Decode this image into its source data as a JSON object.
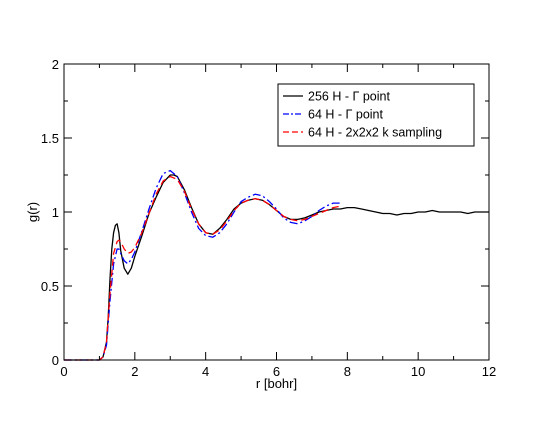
{
  "chart_data": {
    "type": "line",
    "title": "",
    "xlabel": "r [bohr]",
    "ylabel": "g(r)",
    "xlim": [
      0,
      12
    ],
    "ylim": [
      0,
      2
    ],
    "xticks": [
      0,
      2,
      4,
      6,
      8,
      10,
      12
    ],
    "yticks": [
      0,
      0.5,
      1,
      1.5,
      2
    ],
    "xtick_labels": [
      "0",
      "2",
      "4",
      "6",
      "8",
      "10",
      "12"
    ],
    "ytick_labels": [
      "0",
      "0.5",
      "1",
      "1.5",
      "2"
    ],
    "grid": false,
    "legend_position": "top-right",
    "series": [
      {
        "name": "256 H - Γ point",
        "color": "#000000",
        "dash": "solid",
        "x": [
          0,
          1.0,
          1.1,
          1.2,
          1.25,
          1.3,
          1.35,
          1.4,
          1.45,
          1.5,
          1.55,
          1.6,
          1.7,
          1.8,
          1.9,
          2.0,
          2.2,
          2.4,
          2.6,
          2.8,
          3.0,
          3.1,
          3.2,
          3.4,
          3.6,
          3.8,
          4.0,
          4.2,
          4.4,
          4.6,
          4.8,
          5.0,
          5.2,
          5.4,
          5.6,
          5.8,
          6.0,
          6.2,
          6.4,
          6.6,
          6.8,
          7.0,
          7.2,
          7.4,
          7.6,
          7.8,
          8.0,
          8.2,
          8.4,
          8.6,
          8.8,
          9.0,
          9.2,
          9.4,
          9.6,
          9.8,
          10.0,
          10.2,
          10.4,
          10.6,
          10.8,
          11.0,
          11.2,
          11.4,
          11.6,
          11.8,
          12.0
        ],
        "y": [
          0,
          0,
          0.02,
          0.12,
          0.3,
          0.55,
          0.75,
          0.86,
          0.91,
          0.92,
          0.86,
          0.74,
          0.62,
          0.58,
          0.62,
          0.7,
          0.84,
          0.99,
          1.1,
          1.2,
          1.25,
          1.25,
          1.24,
          1.15,
          1.03,
          0.92,
          0.86,
          0.85,
          0.89,
          0.95,
          1.02,
          1.06,
          1.08,
          1.09,
          1.08,
          1.05,
          1.01,
          0.97,
          0.95,
          0.95,
          0.96,
          0.98,
          1.0,
          1.01,
          1.02,
          1.02,
          1.03,
          1.03,
          1.02,
          1.01,
          1.0,
          0.99,
          0.99,
          0.98,
          0.99,
          0.99,
          1.0,
          1.0,
          1.01,
          1.0,
          1.0,
          1.0,
          1.0,
          0.99,
          1.0,
          1.0,
          1.0
        ]
      },
      {
        "name": "64 H   - Γ point",
        "color": "#0000ff",
        "dash": "dashdot",
        "x": [
          0,
          1.0,
          1.1,
          1.2,
          1.3,
          1.4,
          1.5,
          1.55,
          1.6,
          1.7,
          1.8,
          1.9,
          2.0,
          2.2,
          2.4,
          2.6,
          2.8,
          3.0,
          3.2,
          3.4,
          3.6,
          3.8,
          4.0,
          4.2,
          4.4,
          4.6,
          4.8,
          5.0,
          5.2,
          5.4,
          5.6,
          5.8,
          6.0,
          6.2,
          6.4,
          6.6,
          6.8,
          7.0,
          7.2,
          7.4,
          7.6,
          7.8
        ],
        "y": [
          0,
          0,
          0.02,
          0.1,
          0.4,
          0.65,
          0.75,
          0.75,
          0.72,
          0.67,
          0.65,
          0.68,
          0.73,
          0.87,
          1.02,
          1.16,
          1.26,
          1.28,
          1.24,
          1.13,
          1.0,
          0.89,
          0.84,
          0.83,
          0.86,
          0.92,
          1.0,
          1.07,
          1.1,
          1.12,
          1.11,
          1.07,
          1.02,
          0.96,
          0.93,
          0.92,
          0.94,
          0.97,
          1.01,
          1.04,
          1.06,
          1.06
        ]
      },
      {
        "name": "64 H   - 2x2x2 k sampling",
        "color": "#ff0000",
        "dash": "dashed",
        "x": [
          0,
          1.0,
          1.1,
          1.2,
          1.3,
          1.4,
          1.5,
          1.55,
          1.6,
          1.7,
          1.8,
          1.9,
          2.0,
          2.2,
          2.4,
          2.6,
          2.8,
          3.0,
          3.2,
          3.4,
          3.6,
          3.8,
          4.0,
          4.2,
          4.4,
          4.6,
          4.8,
          5.0,
          5.2,
          5.4,
          5.6,
          5.8,
          6.0,
          6.2,
          6.4,
          6.6,
          6.8,
          7.0,
          7.2,
          7.4,
          7.6,
          7.8
        ],
        "y": [
          0,
          0,
          0.02,
          0.12,
          0.45,
          0.72,
          0.8,
          0.81,
          0.8,
          0.75,
          0.72,
          0.73,
          0.76,
          0.86,
          0.99,
          1.12,
          1.21,
          1.24,
          1.22,
          1.14,
          1.02,
          0.92,
          0.86,
          0.85,
          0.88,
          0.94,
          1.01,
          1.06,
          1.08,
          1.09,
          1.08,
          1.05,
          1.01,
          0.97,
          0.95,
          0.94,
          0.95,
          0.97,
          0.99,
          1.01,
          1.03,
          1.04
        ]
      }
    ]
  }
}
